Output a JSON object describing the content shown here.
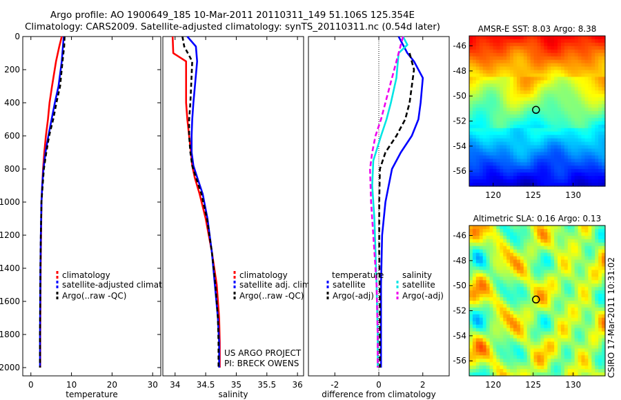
{
  "header": {
    "line1": "Argo profile: AO 1900649_185 10-Mar-2011 20110311_149 51.106S 125.354E",
    "line2": "Climatology: CARS2009. Satellite-adjusted climatology: synTS_20110311.nc (0.54d later)"
  },
  "side_label": "CSIRO 17-Mar-2011 10:31:02",
  "colors": {
    "red": "#ff0000",
    "blue": "#0000ff",
    "black": "#000000",
    "cyan": "#00e5e5",
    "magenta": "#ee00ee"
  },
  "chart_data": [
    {
      "type": "line",
      "xlabel": "temperature",
      "ylabel": "",
      "xlim": [
        -2,
        32
      ],
      "ylim": [
        2050,
        0
      ],
      "y_reversed": true,
      "xticks": [
        0,
        10,
        20,
        30
      ],
      "yticks": [
        0,
        200,
        400,
        600,
        800,
        1000,
        1200,
        1400,
        1600,
        1800,
        2000
      ],
      "legend": {
        "placement": "lower-right",
        "entries": [
          "climatology",
          "satellite-adjusted climatolog"
        ]
      },
      "legend_extra": "Argo(..raw -QC)",
      "series": [
        {
          "name": "climatology",
          "color": "red",
          "dash": "",
          "x": [
            7.6,
            7.0,
            6.2,
            5.2,
            4.6,
            4.2,
            3.7,
            3.3,
            3.0,
            2.8,
            2.6,
            2.5,
            2.4,
            2.35,
            2.3,
            2.3
          ],
          "y": [
            0,
            60,
            150,
            300,
            400,
            500,
            600,
            700,
            800,
            900,
            1000,
            1200,
            1400,
            1600,
            1800,
            2000
          ]
        },
        {
          "name": "satellite-adjusted climatolog",
          "color": "blue",
          "dash": "",
          "x": [
            8.1,
            7.9,
            7.6,
            6.8,
            5.9,
            5.1,
            4.3,
            3.6,
            3.1,
            2.8,
            2.6,
            2.45,
            2.35,
            2.3,
            2.25,
            2.25
          ],
          "y": [
            0,
            60,
            150,
            300,
            400,
            500,
            600,
            700,
            800,
            900,
            1000,
            1200,
            1400,
            1600,
            1800,
            2000
          ]
        },
        {
          "name": "Argo(..raw -QC)",
          "color": "black",
          "dash": "6,4",
          "x": [
            8.3,
            8.2,
            7.8,
            7.2,
            6.3,
            5.5,
            4.5,
            3.8,
            3.2,
            2.9,
            2.6,
            2.45,
            2.35,
            2.3,
            2.25,
            2.25
          ],
          "y": [
            0,
            60,
            150,
            300,
            400,
            500,
            600,
            700,
            800,
            900,
            1000,
            1200,
            1400,
            1600,
            1800,
            2000
          ]
        }
      ]
    },
    {
      "type": "line",
      "xlabel": "salinity",
      "ylabel": "",
      "xlim": [
        33.8,
        36.1
      ],
      "ylim": [
        2050,
        0
      ],
      "y_reversed": true,
      "xticks": [
        34,
        34.5,
        35,
        35.5,
        36
      ],
      "yticks": [],
      "legend": {
        "placement": "lower-right",
        "entries": [
          "climatology",
          "satellite adj. clim."
        ]
      },
      "legend_extra": "Argo(..raw -QC)",
      "annotations": [
        "US ARGO PROJECT",
        "PI: BRECK OWENS"
      ],
      "series": [
        {
          "name": "climatology",
          "color": "red",
          "dash": "",
          "x": [
            33.96,
            33.97,
            34.18,
            34.18,
            34.2,
            34.23,
            34.26,
            34.28,
            34.32,
            34.4,
            34.5,
            34.6,
            34.68,
            34.72,
            34.73,
            34.73
          ],
          "y": [
            0,
            100,
            150,
            400,
            500,
            600,
            700,
            780,
            850,
            950,
            1100,
            1300,
            1500,
            1700,
            1850,
            2000
          ]
        },
        {
          "name": "satellite adj. clim.",
          "color": "blue",
          "dash": "",
          "x": [
            34.2,
            34.34,
            34.36,
            34.3,
            34.28,
            34.27,
            34.27,
            34.3,
            34.36,
            34.45,
            34.53,
            34.6,
            34.65,
            34.7,
            34.72,
            34.72
          ],
          "y": [
            0,
            60,
            150,
            400,
            500,
            600,
            700,
            780,
            850,
            950,
            1100,
            1300,
            1500,
            1700,
            1850,
            2000
          ]
        },
        {
          "name": "Argo(..raw -QC)",
          "color": "black",
          "dash": "6,4",
          "x": [
            34.12,
            34.15,
            34.28,
            34.25,
            34.23,
            34.23,
            34.25,
            34.28,
            34.34,
            34.43,
            34.52,
            34.6,
            34.66,
            34.7,
            34.71,
            34.71
          ],
          "y": [
            0,
            60,
            150,
            400,
            500,
            600,
            700,
            780,
            850,
            950,
            1100,
            1300,
            1500,
            1700,
            1850,
            2000
          ]
        }
      ]
    },
    {
      "type": "line",
      "xlabel": "difference from climatology",
      "ylabel": "",
      "xlim": [
        -3.2,
        3.2
      ],
      "ylim": [
        2050,
        0
      ],
      "y_reversed": true,
      "xticks": [
        -2,
        0,
        2
      ],
      "yticks": [],
      "legend_titles": [
        "temperature",
        "salinity"
      ],
      "legend": {
        "placement": "lower-center",
        "entries": [
          "satellite",
          "Argo(-adj)",
          "satellite",
          "Argo(-adj)"
        ]
      },
      "series": [
        {
          "name": "temperature satellite",
          "color": "blue",
          "dash": "",
          "x": [
            0.9,
            1.3,
            1.6,
            2.0,
            1.9,
            1.8,
            1.5,
            1.0,
            0.6,
            0.3,
            0.15,
            0.1,
            0.1,
            0.1
          ],
          "y": [
            0,
            100,
            150,
            250,
            400,
            500,
            600,
            700,
            800,
            1000,
            1200,
            1500,
            1800,
            2000
          ]
        },
        {
          "name": "temperature Argo(-adj)",
          "color": "black",
          "dash": "7,4",
          "x": [
            1.4,
            1.6,
            1.5,
            1.4,
            1.2,
            0.8,
            0.3,
            0.05,
            0.02,
            0.02,
            0.05,
            0.05
          ],
          "y": [
            100,
            200,
            300,
            400,
            500,
            600,
            700,
            800,
            1000,
            1300,
            1600,
            2000
          ]
        },
        {
          "name": "salinity satellite",
          "color": "cyan",
          "dash": "",
          "x": [
            1.1,
            1.3,
            0.9,
            0.8,
            0.55,
            0.35,
            0.1,
            -0.25,
            -0.3,
            -0.2,
            -0.1,
            -0.05,
            -0.05
          ],
          "y": [
            0,
            50,
            100,
            250,
            400,
            500,
            600,
            750,
            900,
            1100,
            1500,
            1800,
            2000
          ]
        },
        {
          "name": "salinity Argo(-adj)",
          "color": "magenta",
          "dash": "7,4",
          "x": [
            1.1,
            0.9,
            0.7,
            0.5,
            0.1,
            -0.15,
            -0.3,
            -0.4,
            -0.35,
            -0.25,
            -0.1,
            -0.05,
            -0.05
          ],
          "y": [
            0,
            100,
            200,
            300,
            500,
            600,
            700,
            800,
            1000,
            1200,
            1500,
            1800,
            2000
          ]
        }
      ]
    },
    {
      "type": "heatmap",
      "title": "AMSR-E SST: 8.03 Argo: 8.38",
      "xlim": [
        117,
        134
      ],
      "ylim": [
        -57.2,
        -45.2
      ],
      "xticks": [
        120,
        125,
        130
      ],
      "yticks": [
        -46,
        -48,
        -50,
        -52,
        -54,
        -56
      ],
      "marker": {
        "x": 125.354,
        "y": -51.106
      },
      "colormap": "jet"
    },
    {
      "type": "heatmap",
      "title": "Altimetric SLA: 0.16 Argo: 0.13",
      "xlim": [
        117,
        134
      ],
      "ylim": [
        -57.2,
        -45.2
      ],
      "xticks": [
        120,
        125,
        130
      ],
      "yticks": [
        -46,
        -48,
        -50,
        -52,
        -54,
        -56
      ],
      "marker": {
        "x": 125.354,
        "y": -51.106
      },
      "colormap": "jet"
    }
  ]
}
